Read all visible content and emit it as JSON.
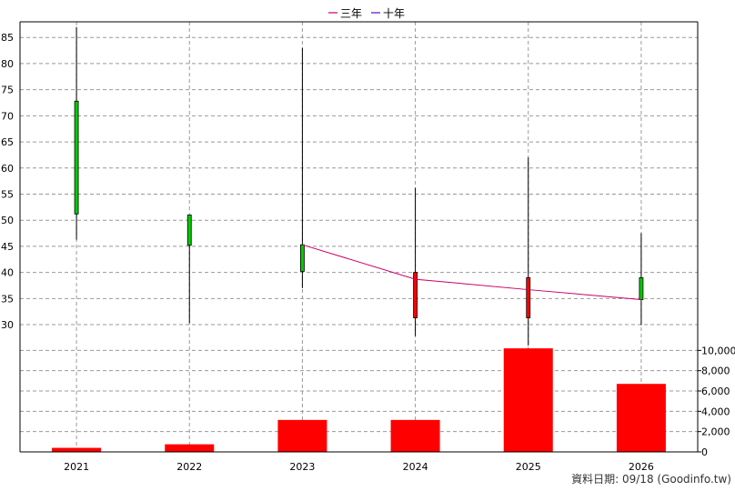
{
  "legend": [
    {
      "name": "三年",
      "color": "#cc0066"
    },
    {
      "name": "十年",
      "color": "#6600cc"
    }
  ],
  "source_note": "資料日期: 09/18  (Goodinfo.tw)",
  "colors": {
    "up": "#00cc00",
    "down": "#ff0000",
    "volume": "#ff0000",
    "wick": "#000000",
    "grid": "#999999",
    "line3y": "#cc0066"
  },
  "chart_data": [
    {
      "type": "candlestick",
      "categories": [
        "2021",
        "2022",
        "2023",
        "2024",
        "2025",
        "2026"
      ],
      "series": [
        {
          "values": [
            {
              "open": 51.2,
              "close": 72.8,
              "high": 87,
              "low": 46.3
            },
            {
              "open": 45.2,
              "close": 51.0,
              "high": 51.0,
              "low": 30.3
            },
            {
              "open": 40.2,
              "close": 45.3,
              "high": 83.0,
              "low": 37.0
            },
            {
              "open": 40.0,
              "close": 31.3,
              "high": 56.2,
              "low": 27.8
            },
            {
              "open": 39.0,
              "close": 31.3,
              "high": 62.0,
              "low": 26.0
            },
            {
              "open": 34.8,
              "close": 39.0,
              "high": 47.5,
              "low": 29.9
            }
          ]
        }
      ],
      "ylim": [
        26,
        88
      ],
      "yticks": [
        30,
        35,
        40,
        45,
        50,
        55,
        60,
        65,
        70,
        75,
        80,
        85
      ],
      "grid": true,
      "legend_position": "top-center"
    },
    {
      "type": "line",
      "series": [
        {
          "name": "三年",
          "x": [
            "2023",
            "2024",
            "2025",
            "2026"
          ],
          "values": [
            45.3,
            38.7,
            36.7,
            34.8
          ]
        }
      ]
    },
    {
      "type": "bar",
      "categories": [
        "2021",
        "2022",
        "2023",
        "2024",
        "2025",
        "2026"
      ],
      "values": [
        400,
        750,
        3150,
        3150,
        10200,
        6700
      ],
      "ylim": [
        0,
        10300
      ],
      "yticks": [
        0,
        2000,
        4000,
        6000,
        8000,
        10000
      ],
      "ytick_labels": [
        "0",
        "2,000",
        "4,000",
        "6,000",
        "8,000",
        "10,000"
      ],
      "axis_side": "right",
      "grid": true
    }
  ]
}
